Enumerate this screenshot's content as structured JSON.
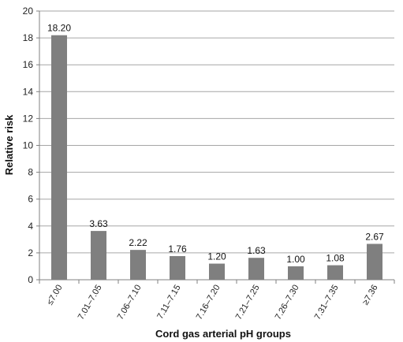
{
  "chart_data": {
    "type": "bar",
    "title": "",
    "xlabel": "Cord gas arterial pH groups",
    "ylabel": "Relative risk",
    "ylim": [
      0,
      20
    ],
    "yticks": [
      0,
      2,
      4,
      6,
      8,
      10,
      12,
      14,
      16,
      18,
      20
    ],
    "grid": "horizontal",
    "legend": "none",
    "categories": [
      "≤7.00",
      "7.01–7.05",
      "7.06–7.10",
      "7.11–7.15",
      "7.16–7.20",
      "7.21–7.25",
      "7.26–7.30",
      "7.31–7.35",
      "≥7.36"
    ],
    "values": [
      18.2,
      3.63,
      2.22,
      1.76,
      1.2,
      1.63,
      1.0,
      1.08,
      2.67
    ],
    "value_labels": [
      "18.20",
      "3.63",
      "2.22",
      "1.76",
      "1.20",
      "1.63",
      "1.00",
      "1.08",
      "2.67"
    ],
    "colors": {
      "bar": "#7f7f7f",
      "grid": "#a6a6a6",
      "axis": "#808080"
    }
  }
}
